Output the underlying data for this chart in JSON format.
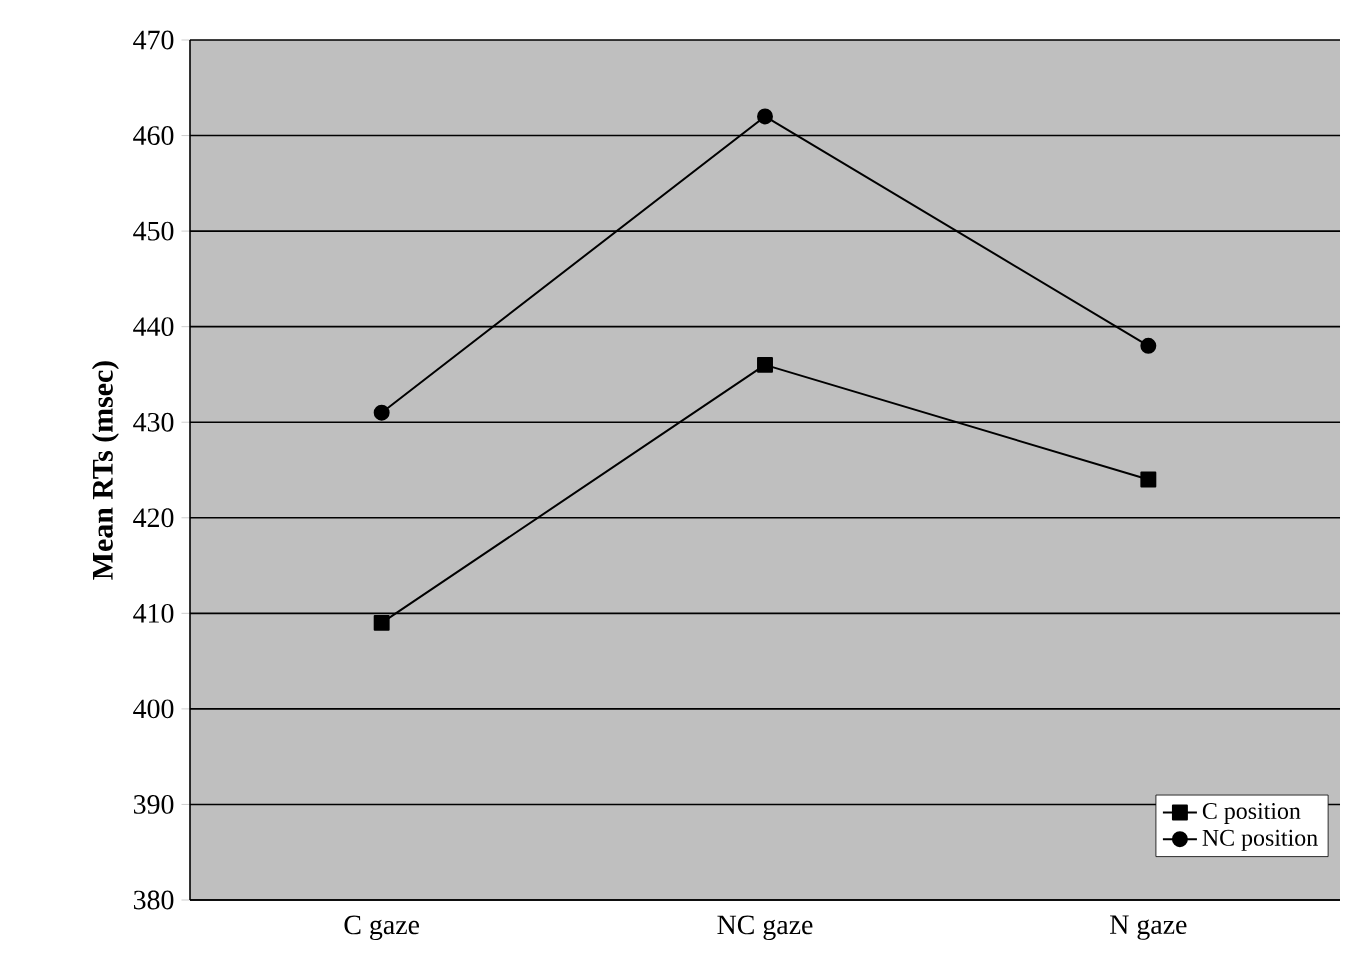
{
  "chart_data": {
    "type": "line",
    "ylabel": "Mean RTs (msec)",
    "categories": [
      "C gaze",
      "NC gaze",
      "N gaze"
    ],
    "series": [
      {
        "name": "C position",
        "color": "#000000",
        "marker": "square",
        "values": [
          409,
          436,
          424
        ]
      },
      {
        "name": "NC position",
        "color": "#000000",
        "marker": "circle",
        "values": [
          431,
          462,
          438
        ]
      }
    ],
    "ylim": [
      380,
      470
    ],
    "yticks": [
      380,
      390,
      400,
      410,
      420,
      430,
      440,
      450,
      460,
      470
    ],
    "grid": "y",
    "legend": "bottom right",
    "line_style": "solid"
  }
}
